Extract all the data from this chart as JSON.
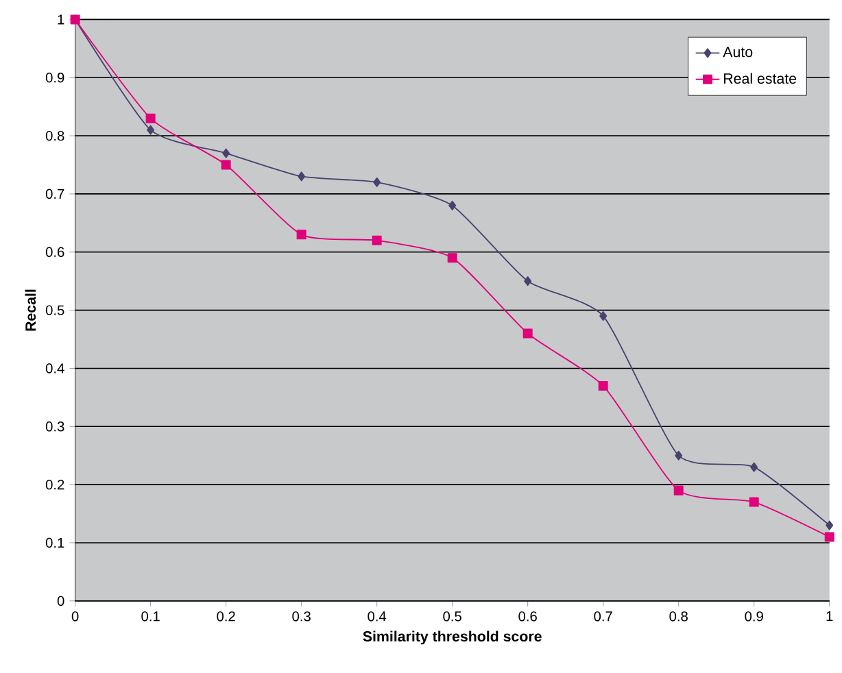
{
  "chart_data": {
    "type": "line",
    "xlabel": "Similarity threshold score",
    "ylabel": "Recall",
    "x": [
      0,
      0.1,
      0.2,
      0.3,
      0.4,
      0.5,
      0.6,
      0.7,
      0.8,
      0.9,
      1
    ],
    "series": [
      {
        "name": "Auto",
        "color": "#4a416e",
        "marker": "diamond",
        "values": [
          1,
          0.81,
          0.77,
          0.73,
          0.72,
          0.68,
          0.55,
          0.49,
          0.25,
          0.23,
          0.13
        ]
      },
      {
        "name": "Real estate",
        "color": "#e0007a",
        "marker": "square",
        "values": [
          1,
          0.83,
          0.75,
          0.63,
          0.62,
          0.59,
          0.46,
          0.37,
          0.19,
          0.17,
          0.11
        ]
      }
    ],
    "xlim": [
      0,
      1
    ],
    "ylim": [
      0,
      1
    ],
    "xticks": [
      0,
      0.1,
      0.2,
      0.3,
      0.4,
      0.5,
      0.6,
      0.7,
      0.8,
      0.9,
      1
    ],
    "yticks": [
      0,
      0.1,
      0.2,
      0.3,
      0.4,
      0.5,
      0.6,
      0.7,
      0.8,
      0.9,
      1
    ],
    "grid": "y",
    "legend": "top right"
  }
}
